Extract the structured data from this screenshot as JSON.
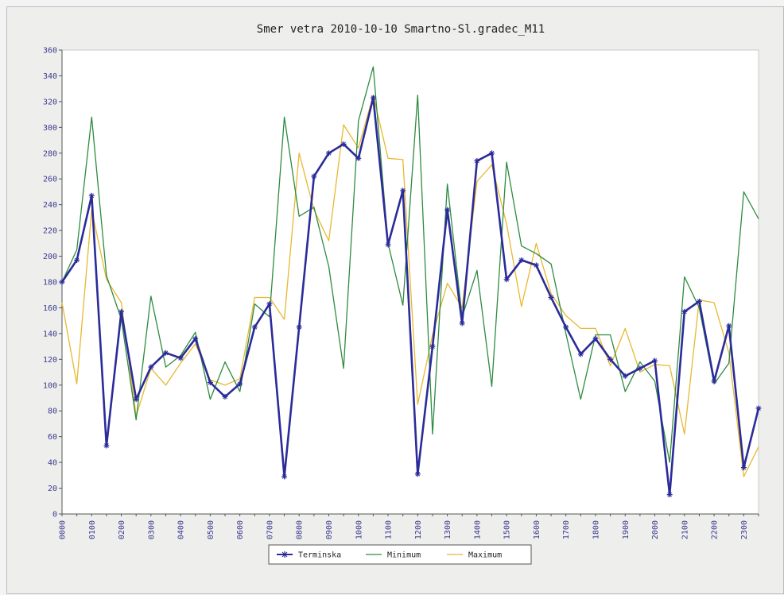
{
  "chart_data": {
    "type": "line",
    "title": "Smer vetra 2010-10-10 Smartno-Sl.gradec_M11",
    "xlabel": "",
    "ylabel": "",
    "ylim": [
      0,
      360
    ],
    "yticks": [
      0,
      20,
      40,
      60,
      80,
      100,
      120,
      140,
      160,
      180,
      200,
      220,
      240,
      260,
      280,
      300,
      320,
      340,
      360
    ],
    "xticks": [
      "0000",
      "0100",
      "0200",
      "0300",
      "0400",
      "0500",
      "0600",
      "0700",
      "0800",
      "0900",
      "1000",
      "1100",
      "1200",
      "1300",
      "1400",
      "1500",
      "1600",
      "1700",
      "1800",
      "1900",
      "2000",
      "2100",
      "2200",
      "2300"
    ],
    "x_step_minutes": 30,
    "grid": false,
    "legend_position": "bottom-center",
    "series": [
      {
        "name": "Terminska",
        "color": "#2b2b9a",
        "marker": "star",
        "values": [
          180,
          197,
          247,
          53,
          157,
          89,
          114,
          125,
          121,
          136,
          102,
          91,
          101,
          145,
          163,
          29,
          145,
          262,
          280,
          287,
          276,
          323,
          209,
          251,
          31,
          130,
          236,
          148,
          274,
          280,
          182,
          197,
          193,
          168,
          145,
          124,
          136,
          120,
          107,
          113,
          119,
          15,
          157,
          165,
          103,
          146,
          36,
          82
        ]
      },
      {
        "name": "Minimum",
        "color": "#2e8b40",
        "values": [
          180,
          205,
          308,
          185,
          151,
          73,
          169,
          114,
          123,
          141,
          89,
          118,
          95,
          163,
          153,
          308,
          231,
          238,
          192,
          113,
          305,
          347,
          210,
          162,
          325,
          62,
          256,
          153,
          189,
          99,
          273,
          208,
          202,
          194,
          140,
          89,
          139,
          139,
          95,
          118,
          103,
          40,
          184,
          160,
          101,
          117,
          250,
          229
        ]
      },
      {
        "name": "Maximum",
        "color": "#e8b830",
        "values": [
          164,
          101,
          236,
          182,
          164,
          76,
          113,
          100,
          117,
          132,
          104,
          100,
          105,
          168,
          168,
          151,
          280,
          236,
          212,
          302,
          284,
          325,
          276,
          275,
          85,
          139,
          179,
          160,
          258,
          271,
          225,
          161,
          210,
          171,
          154,
          144,
          144,
          115,
          144,
          110,
          116,
          115,
          62,
          166,
          164,
          125,
          29,
          52
        ]
      }
    ]
  }
}
